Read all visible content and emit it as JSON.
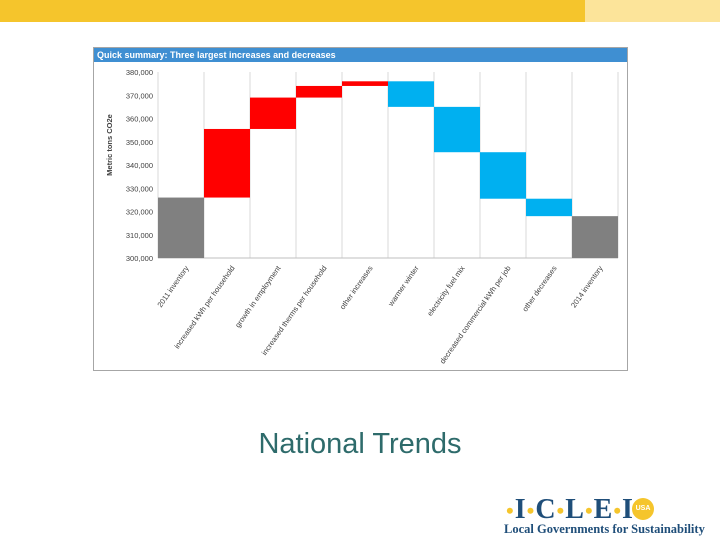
{
  "slide": {
    "title": "National Trends"
  },
  "logo": {
    "letters": [
      "I",
      "C",
      "L",
      "E",
      "I"
    ],
    "badge": "USA",
    "tagline": "Local Governments for Sustainability"
  },
  "colors": {
    "topbar": "#f5c52c",
    "topbar_light": "#fce49a",
    "header": "#3f8fd2",
    "increase": "#ff0000",
    "decrease": "#00b0f0",
    "total": "#808080"
  },
  "chart_data": {
    "type": "bar",
    "subtype": "waterfall",
    "title": "Quick summary: Three largest increases and decreases",
    "ylabel": "Metric tons CO2e",
    "ylim": [
      300000,
      380000
    ],
    "yticks": [
      "300,000",
      "310,000",
      "320,000",
      "330,000",
      "340,000",
      "350,000",
      "360,000",
      "370,000",
      "380,000"
    ],
    "categories": [
      "2011 inventory",
      "increased kWh per household",
      "growth in employment",
      "increased therms per household",
      "other increases",
      "warmer winter",
      "electricity fuel mix",
      "decreased commercial kWh per job",
      "other decreases",
      "2014 inventory"
    ],
    "bars": [
      {
        "kind": "total",
        "start": 300000,
        "end": 326000
      },
      {
        "kind": "increase",
        "start": 326000,
        "end": 355500
      },
      {
        "kind": "increase",
        "start": 355500,
        "end": 369000
      },
      {
        "kind": "increase",
        "start": 369000,
        "end": 374000
      },
      {
        "kind": "increase",
        "start": 374000,
        "end": 376000
      },
      {
        "kind": "decrease",
        "start": 376000,
        "end": 365000
      },
      {
        "kind": "decrease",
        "start": 365000,
        "end": 345500
      },
      {
        "kind": "decrease",
        "start": 345500,
        "end": 325500
      },
      {
        "kind": "decrease",
        "start": 325500,
        "end": 318000
      },
      {
        "kind": "total",
        "start": 300000,
        "end": 318000
      }
    ],
    "grid": "vertical",
    "legend": "none"
  }
}
